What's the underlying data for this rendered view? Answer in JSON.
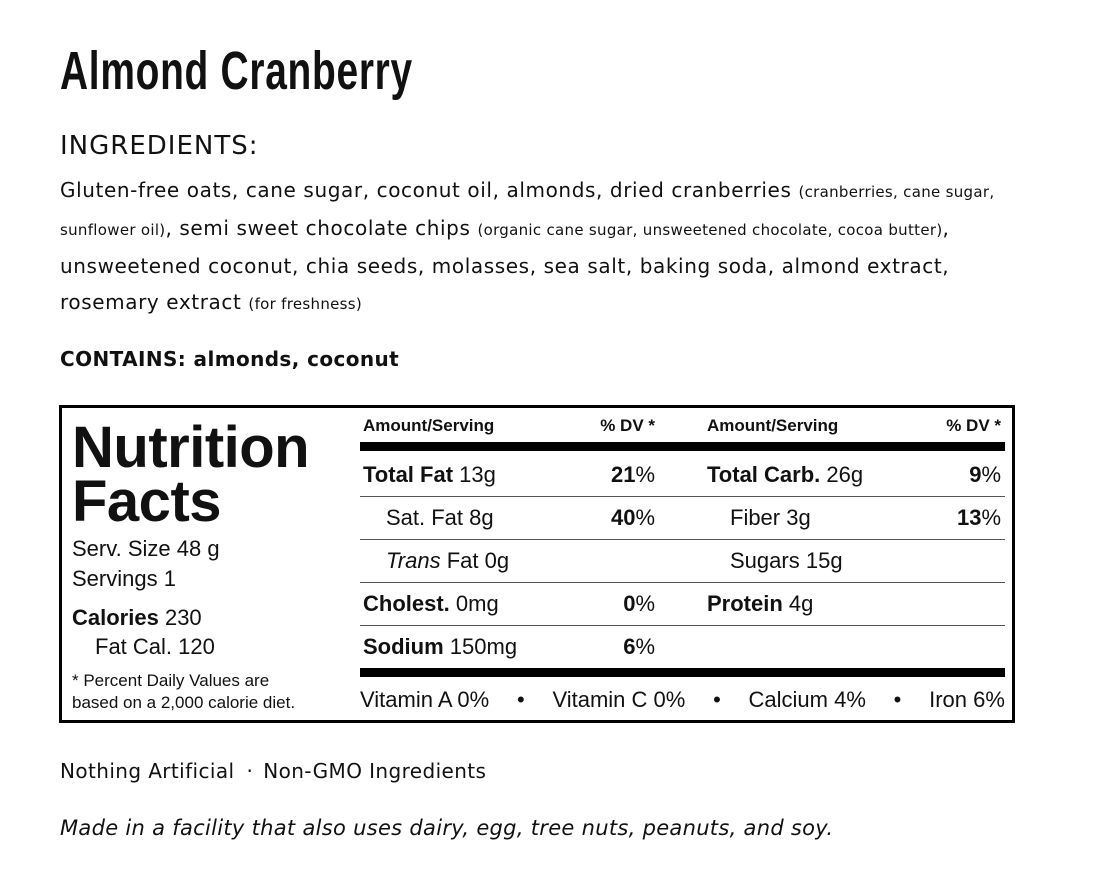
{
  "title": "Almond Cranberry",
  "ingredients": {
    "heading": "INGREDIENTS:",
    "parts": [
      {
        "text": "Gluten-free oats, cane sugar, coconut oil, almonds, dried cranberries",
        "small": false
      },
      {
        "text": "(cranberries, cane sugar, sunflower oil)",
        "small": true
      },
      {
        "text": ", semi sweet chocolate chips",
        "small": false
      },
      {
        "text": "(organic cane sugar, unsweetened chocolate, cocoa butter)",
        "small": true
      },
      {
        "text": ", unsweetened coconut, chia seeds, molasses, sea salt, baking soda, almond extract, rosemary extract",
        "small": false
      },
      {
        "text": "(for freshness)",
        "small": true
      }
    ]
  },
  "contains": {
    "label": "CONTAINS:",
    "text": "almonds, coconut"
  },
  "nutrition": {
    "heading": [
      "Nutrition",
      "Facts"
    ],
    "serving_size": "Serv. Size 48 g",
    "servings": "Servings 1",
    "calories": {
      "label": "Calories",
      "value": 230
    },
    "fat_calories": {
      "label": "Fat Cal.",
      "value": 120
    },
    "footnote": [
      "* Percent Daily Values are",
      "based on a 2,000 calorie diet."
    ],
    "column_header": {
      "amount": "Amount/Serving",
      "dv": "% DV *"
    },
    "percent_sign": "%",
    "left_rows": [
      {
        "label": "Total Fat",
        "amount": "13g",
        "dv": 21,
        "sub": false
      },
      {
        "label": "Sat. Fat",
        "amount": "8g",
        "dv": 40,
        "sub": true
      },
      {
        "italic": "Trans",
        "label": "Fat",
        "amount": "0g",
        "sub": true
      },
      {
        "label": "Cholest.",
        "amount": "0mg",
        "dv": 0,
        "sub": false
      },
      {
        "label": "Sodium",
        "amount": "150mg",
        "dv": 6,
        "sub": false
      }
    ],
    "right_rows": [
      {
        "label": "Total Carb.",
        "amount": "26g",
        "dv": 9,
        "sub": false
      },
      {
        "label": "Fiber",
        "amount": "3g",
        "dv": 13,
        "sub": true
      },
      {
        "label": "Sugars",
        "amount": "15g",
        "sub": true
      },
      {
        "label": "Protein",
        "amount": "4g",
        "sub": false
      }
    ],
    "vitamins": [
      "Vitamin A 0%",
      "Vitamin C 0%",
      "Calcium 4%",
      "Iron 6%"
    ],
    "separator": "•"
  },
  "claims": {
    "items": [
      "Nothing Artificial",
      "Non-GMO Ingredients"
    ],
    "separator": "·"
  },
  "disclaimer": "Made in a facility that also uses dairy, egg, tree nuts, peanuts, and soy."
}
